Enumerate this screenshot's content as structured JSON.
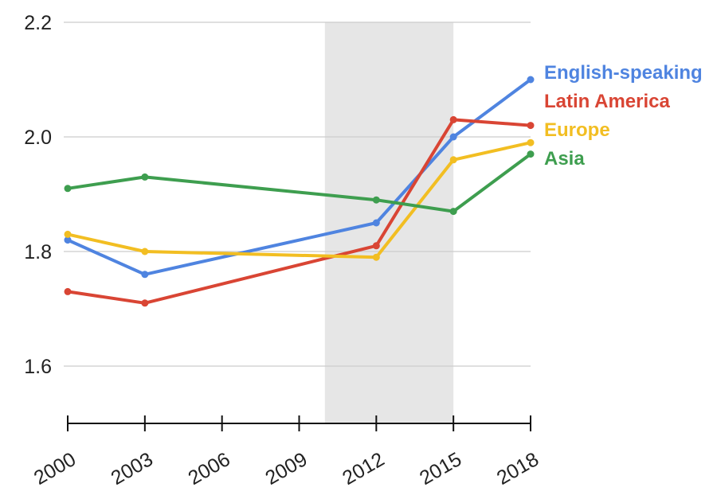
{
  "chart_data": {
    "type": "line",
    "title": "",
    "xlabel": "",
    "ylabel": "",
    "x": [
      2000,
      2003,
      2012,
      2015,
      2018
    ],
    "x_ticks": [
      "2000",
      "2003",
      "2006",
      "2009",
      "2012",
      "2015",
      "2018"
    ],
    "y_ticks": [
      "1.6",
      "1.8",
      "2.0",
      "2.2"
    ],
    "xlim": [
      2000,
      2018
    ],
    "ylim": [
      1.5,
      2.2
    ],
    "grid": true,
    "legend_placement": "right",
    "shaded_region": [
      2010,
      2015
    ],
    "series": [
      {
        "name": "English-speaking",
        "color": "#4f84e0",
        "values": [
          1.82,
          1.76,
          1.85,
          2.0,
          2.1
        ]
      },
      {
        "name": "Latin America",
        "color": "#d94534",
        "values": [
          1.73,
          1.71,
          1.81,
          2.03,
          2.02
        ]
      },
      {
        "name": "Europe",
        "color": "#f2be22",
        "values": [
          1.83,
          1.8,
          1.79,
          1.96,
          1.99
        ]
      },
      {
        "name": "Asia",
        "color": "#3e9e4f",
        "values": [
          1.91,
          1.93,
          1.89,
          1.87,
          1.97
        ]
      }
    ]
  }
}
